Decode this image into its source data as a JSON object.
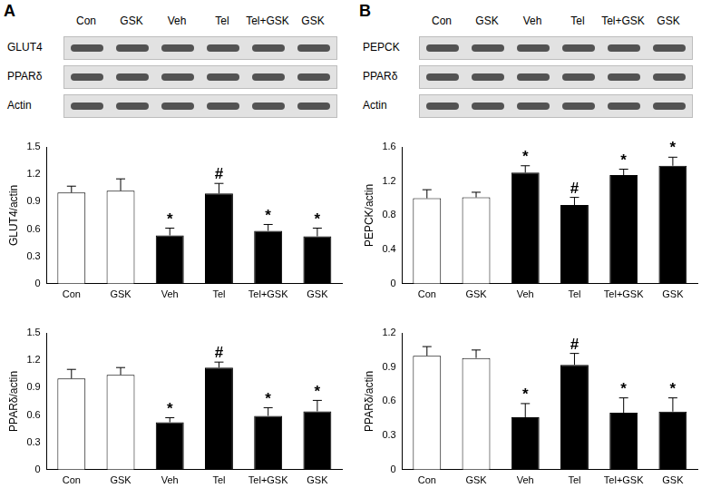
{
  "panels": [
    {
      "label": "A",
      "lanes": [
        "Con",
        "GSK",
        "Veh",
        "Tel",
        "Tel+GSK",
        "GSK"
      ],
      "blots": [
        "GLUT4",
        "PPARδ",
        "Actin"
      ]
    },
    {
      "label": "B",
      "lanes": [
        "Con",
        "GSK",
        "Veh",
        "Tel",
        "Tel+GSK",
        "GSK"
      ],
      "blots": [
        "PEPCK",
        "PPARδ",
        "Actin"
      ]
    }
  ],
  "chart_data": [
    {
      "type": "bar",
      "ylabel": "GLUT4/actin",
      "categories": [
        "Con",
        "GSK",
        "Veh",
        "Tel",
        "Tel+GSK",
        "GSK"
      ],
      "values": [
        1.0,
        1.02,
        0.53,
        0.99,
        0.58,
        0.52
      ],
      "errors": [
        0.07,
        0.13,
        0.08,
        0.11,
        0.07,
        0.09
      ],
      "annotations": [
        null,
        null,
        "*",
        "#",
        "*",
        "*"
      ],
      "colors": [
        "#ffffff",
        "#ffffff",
        "#000000",
        "#000000",
        "#000000",
        "#000000"
      ],
      "ylim": [
        0,
        1.5
      ],
      "yticks": [
        0,
        0.3,
        0.6,
        0.9,
        1.2,
        1.5
      ],
      "grid": false
    },
    {
      "type": "bar",
      "ylabel": "PPARδ/actin",
      "categories": [
        "Con",
        "GSK",
        "Veh",
        "Tel",
        "Tel+GSK",
        "GSK"
      ],
      "values": [
        1.0,
        1.04,
        0.52,
        1.12,
        0.59,
        0.64
      ],
      "errors": [
        0.1,
        0.08,
        0.05,
        0.06,
        0.09,
        0.12
      ],
      "annotations": [
        null,
        null,
        "*",
        "#",
        "*",
        "*"
      ],
      "colors": [
        "#ffffff",
        "#ffffff",
        "#000000",
        "#000000",
        "#000000",
        "#000000"
      ],
      "ylim": [
        0,
        1.5
      ],
      "yticks": [
        0,
        0.3,
        0.6,
        0.9,
        1.2,
        1.5
      ],
      "grid": false
    },
    {
      "type": "bar",
      "ylabel": "PEPCK/actin",
      "categories": [
        "Con",
        "GSK",
        "Veh",
        "Tel",
        "Tel+GSK",
        "GSK"
      ],
      "values": [
        1.0,
        1.01,
        1.3,
        0.92,
        1.27,
        1.38
      ],
      "errors": [
        0.1,
        0.06,
        0.08,
        0.09,
        0.07,
        0.1
      ],
      "annotations": [
        null,
        null,
        "*",
        "#",
        "*",
        "*"
      ],
      "colors": [
        "#ffffff",
        "#ffffff",
        "#000000",
        "#000000",
        "#000000",
        "#000000"
      ],
      "ylim": [
        0,
        1.6
      ],
      "yticks": [
        0,
        0.4,
        0.8,
        1.2,
        1.6
      ],
      "grid": false
    },
    {
      "type": "bar",
      "ylabel": "PPARδ/actin",
      "categories": [
        "Con",
        "GSK",
        "Veh",
        "Tel",
        "Tel+GSK",
        "GSK"
      ],
      "values": [
        1.0,
        0.98,
        0.46,
        0.92,
        0.5,
        0.51
      ],
      "errors": [
        0.08,
        0.07,
        0.12,
        0.1,
        0.13,
        0.12
      ],
      "annotations": [
        null,
        null,
        "*",
        "#",
        "*",
        "*"
      ],
      "colors": [
        "#ffffff",
        "#ffffff",
        "#000000",
        "#000000",
        "#000000",
        "#000000"
      ],
      "ylim": [
        0,
        1.2
      ],
      "yticks": [
        0,
        0.3,
        0.6,
        0.9,
        1.2
      ],
      "grid": false
    }
  ]
}
